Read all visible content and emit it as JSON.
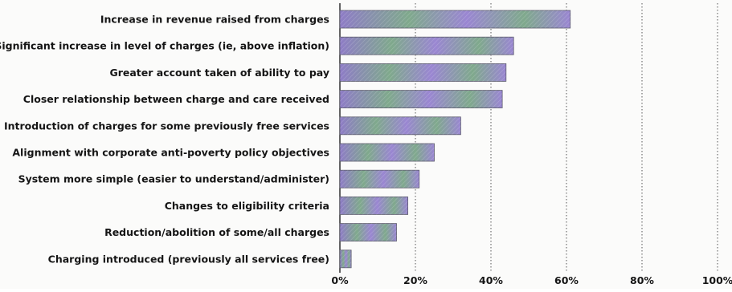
{
  "chart_data": {
    "type": "bar",
    "orientation": "horizontal",
    "categories": [
      "Increase in revenue raised from charges",
      "Significant increase in level of charges (ie, above inflation)",
      "Greater account taken of ability to pay",
      "Closer relationship between charge and care received",
      "Introduction of charges for some previously free services",
      "Alignment with corporate anti-poverty policy objectives",
      "System more simple (easier to understand/administer)",
      "Changes to eligibility criteria",
      "Reduction/abolition of some/all charges",
      "Charging introduced (previously all services free)"
    ],
    "values": [
      61,
      46,
      44,
      43,
      32,
      25,
      21,
      18,
      15,
      3
    ],
    "xlim": [
      0,
      100
    ],
    "xticks": [
      "0%",
      "20%",
      "40%",
      "60%",
      "80%",
      "100%"
    ],
    "grid": true,
    "legend": "none",
    "colors": {
      "bar_start": "#8e7cc6",
      "bar_mid": "#7fa98c",
      "bar_end": "#9a86d2",
      "bar_outline": "#5b5a6b",
      "grid": "#555555",
      "axis": "#222222",
      "text": "#151515"
    }
  }
}
